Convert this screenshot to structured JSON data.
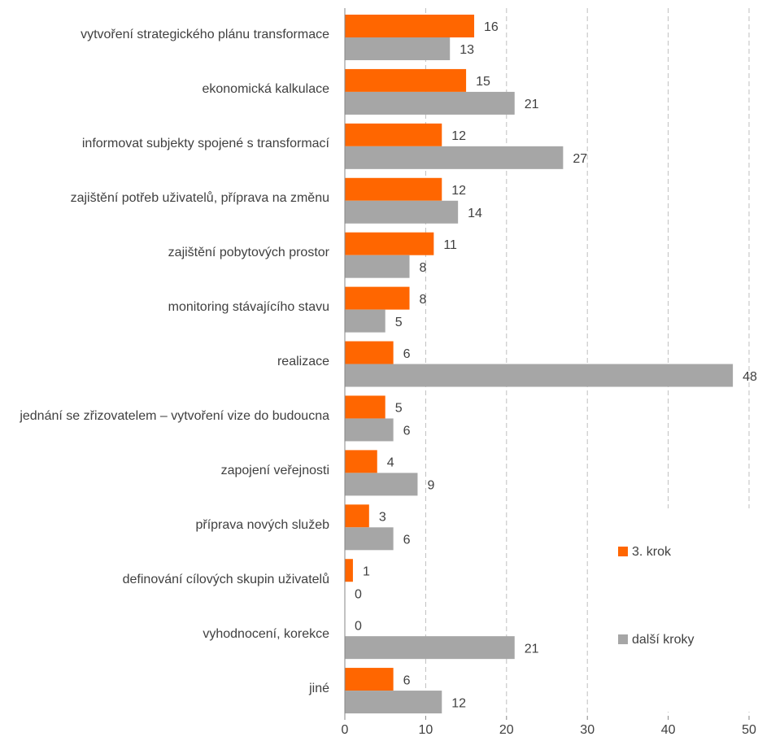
{
  "chart_data": {
    "type": "bar",
    "orientation": "horizontal",
    "categories": [
      "vytvoření strategického plánu transformace",
      "ekonomická kalkulace",
      "informovat subjekty spojené s transformací",
      "zajištění potřeb uživatelů, příprava na změnu",
      "zajištění pobytových prostor",
      "monitoring stávajícího stavu",
      "realizace",
      "jednání se zřizovatelem – vytvoření vize do budoucna",
      "zapojení veřejnosti",
      "příprava nových služeb",
      "definování cílových skupin uživatelů",
      "vyhodnocení, korekce",
      "jiné"
    ],
    "series": [
      {
        "name": "3. krok",
        "color": "#ff6600",
        "values": [
          16,
          15,
          12,
          12,
          11,
          8,
          6,
          5,
          4,
          3,
          1,
          0,
          6
        ]
      },
      {
        "name": "další kroky",
        "color": "#a6a6a6",
        "values": [
          13,
          21,
          27,
          14,
          8,
          5,
          48,
          6,
          9,
          6,
          0,
          21,
          12
        ]
      }
    ],
    "xlim": [
      0,
      50
    ],
    "xticks": [
      0,
      10,
      20,
      30,
      40,
      50
    ],
    "grid": true
  }
}
